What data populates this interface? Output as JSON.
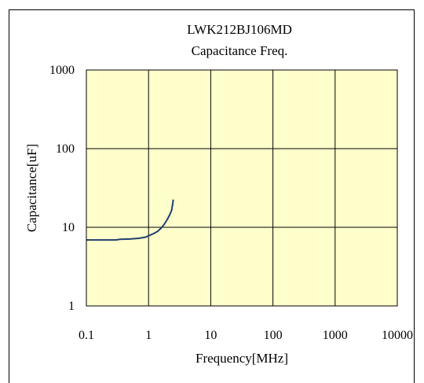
{
  "chart_data": {
    "type": "line",
    "title": "LWK212BJ106MD",
    "subtitle": "Capacitance Freq.",
    "xlabel": "Frequency[MHz]",
    "ylabel": "Capacitance[uF]",
    "x_scale": "log",
    "y_scale": "log",
    "xlim": [
      0.1,
      10000
    ],
    "ylim": [
      1,
      1000
    ],
    "x_ticks": [
      "0.1",
      "1",
      "10",
      "100",
      "1000",
      "10000"
    ],
    "y_ticks": [
      "1",
      "10",
      "100",
      "1000"
    ],
    "grid": true,
    "legend": "none",
    "colors": {
      "plot_background": "#ffffcc",
      "line": "#1f3f6f",
      "grid": "#000000"
    },
    "series": [
      {
        "x": [
          0.1,
          0.2,
          0.3,
          0.35,
          0.5,
          0.7,
          0.9,
          1.0,
          1.2,
          1.4,
          1.6,
          1.8,
          2.0,
          2.2,
          2.35,
          2.4,
          2.45,
          2.5
        ],
        "y": [
          6.9,
          6.9,
          6.9,
          7.05,
          7.1,
          7.25,
          7.5,
          7.8,
          8.3,
          8.9,
          9.8,
          11.0,
          12.6,
          14.5,
          16.5,
          18.2,
          20.0,
          22.5
        ]
      }
    ]
  }
}
